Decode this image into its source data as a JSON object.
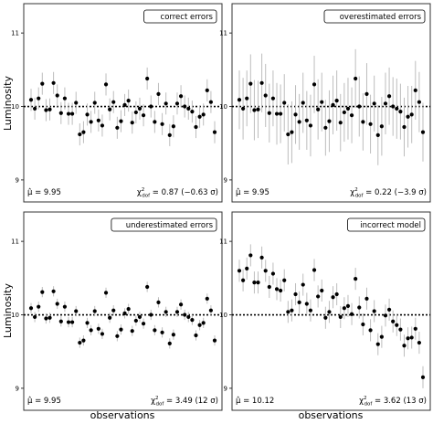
{
  "figure": {
    "ylabel": "Luminosity",
    "xlabel": "observations"
  },
  "chart_data": [
    {
      "type": "scatter",
      "title": "correct errors",
      "ylim": [
        8.7,
        11.4
      ],
      "yticks": [
        9,
        10,
        11
      ],
      "ref_line": 10,
      "mu_label": "μ̂ = 9.95",
      "chi_label": "χ²dof = 0.87 (−0.63 σ)",
      "chi_parts": [
        "χ",
        "2",
        "dof",
        " = 0.87 (−0.63 σ)"
      ],
      "values": [
        10.09,
        9.97,
        10.11,
        10.31,
        9.95,
        9.96,
        10.32,
        10.15,
        9.91,
        10.11,
        9.9,
        9.9,
        10.05,
        9.62,
        9.65,
        9.89,
        9.79,
        10.05,
        9.81,
        9.74,
        10.3,
        9.96,
        10.06,
        9.71,
        9.8,
        10.02,
        10.08,
        9.78,
        9.92,
        9.97,
        9.88,
        10.38,
        10.0,
        9.79,
        10.17,
        9.76,
        10.04,
        9.61,
        9.73,
        10.04,
        10.14,
        10.0,
        9.97,
        9.93,
        9.72,
        9.86,
        9.89,
        10.22,
        10.06,
        9.65
      ],
      "errors": [
        0.15,
        0.15,
        0.15,
        0.15,
        0.15,
        0.15,
        0.15,
        0.15,
        0.15,
        0.15,
        0.15,
        0.15,
        0.15,
        0.15,
        0.15,
        0.15,
        0.15,
        0.15,
        0.15,
        0.15,
        0.15,
        0.15,
        0.15,
        0.15,
        0.15,
        0.15,
        0.15,
        0.15,
        0.15,
        0.15,
        0.15,
        0.15,
        0.15,
        0.15,
        0.15,
        0.15,
        0.15,
        0.15,
        0.15,
        0.15,
        0.15,
        0.15,
        0.15,
        0.15,
        0.15,
        0.15,
        0.15,
        0.15,
        0.15,
        0.15
      ]
    },
    {
      "type": "scatter",
      "title": "overestimated errors",
      "ylim": [
        8.7,
        11.4
      ],
      "yticks": [
        9,
        10,
        11
      ],
      "ref_line": 10,
      "mu_label": "μ̂ = 9.95",
      "chi_label": "χ²dof = 0.22 (−3.9 σ)",
      "chi_parts": [
        "χ",
        "2",
        "dof",
        " = 0.22 (−3.9 σ)"
      ],
      "values": [
        10.09,
        9.97,
        10.11,
        10.31,
        9.95,
        9.96,
        10.32,
        10.15,
        9.91,
        10.11,
        9.9,
        9.9,
        10.05,
        9.62,
        9.65,
        9.89,
        9.79,
        10.05,
        9.81,
        9.74,
        10.3,
        9.96,
        10.06,
        9.71,
        9.8,
        10.02,
        10.08,
        9.78,
        9.92,
        9.97,
        9.88,
        10.38,
        10.0,
        9.79,
        10.17,
        9.76,
        10.04,
        9.61,
        9.73,
        10.04,
        10.14,
        10.0,
        9.97,
        9.93,
        9.72,
        9.86,
        9.89,
        10.22,
        10.06,
        9.65
      ],
      "errors": [
        0.4,
        0.42,
        0.38,
        0.4,
        0.41,
        0.39,
        0.4,
        0.43,
        0.4,
        0.38,
        0.42,
        0.4,
        0.39,
        0.41,
        0.42,
        0.4,
        0.38,
        0.41,
        0.4,
        0.42,
        0.39,
        0.41,
        0.4,
        0.38,
        0.42,
        0.4,
        0.41,
        0.39,
        0.4,
        0.42,
        0.38,
        0.4,
        0.41,
        0.39,
        0.42,
        0.4,
        0.38,
        0.41,
        0.4,
        0.42,
        0.39,
        0.4,
        0.41,
        0.38,
        0.4,
        0.42,
        0.39,
        0.4,
        0.41,
        0.4
      ]
    },
    {
      "type": "scatter",
      "title": "underestimated errors",
      "ylim": [
        8.7,
        11.4
      ],
      "yticks": [
        9,
        10,
        11
      ],
      "ref_line": 10,
      "mu_label": "μ̂ = 9.95",
      "chi_label": "χ²dof = 3.49 (12 σ)",
      "chi_parts": [
        "χ",
        "2",
        "dof",
        " = 3.49 (12 σ)"
      ],
      "values": [
        10.09,
        9.97,
        10.11,
        10.31,
        9.95,
        9.96,
        10.32,
        10.15,
        9.91,
        10.11,
        9.9,
        9.9,
        10.05,
        9.62,
        9.65,
        9.89,
        9.79,
        10.05,
        9.81,
        9.74,
        10.3,
        9.96,
        10.06,
        9.71,
        9.8,
        10.02,
        10.08,
        9.78,
        9.92,
        9.97,
        9.88,
        10.38,
        10.0,
        9.79,
        10.17,
        9.76,
        10.04,
        9.61,
        9.73,
        10.04,
        10.14,
        10.0,
        9.97,
        9.93,
        9.72,
        9.86,
        9.89,
        10.22,
        10.06,
        9.65
      ],
      "errors": [
        0.07,
        0.07,
        0.07,
        0.07,
        0.07,
        0.07,
        0.07,
        0.07,
        0.07,
        0.07,
        0.07,
        0.07,
        0.07,
        0.07,
        0.07,
        0.07,
        0.07,
        0.07,
        0.07,
        0.07,
        0.07,
        0.07,
        0.07,
        0.07,
        0.07,
        0.07,
        0.07,
        0.07,
        0.07,
        0.07,
        0.07,
        0.07,
        0.07,
        0.07,
        0.07,
        0.07,
        0.07,
        0.07,
        0.07,
        0.07,
        0.07,
        0.07,
        0.07,
        0.07,
        0.07,
        0.07,
        0.07,
        0.07,
        0.07,
        0.07
      ]
    },
    {
      "type": "scatter",
      "title": "incorrect model",
      "ylim": [
        8.7,
        11.4
      ],
      "yticks": [
        9,
        10,
        11
      ],
      "ref_line": 10,
      "mu_label": "μ̂ = 10.12",
      "chi_label": "χ²dof = 3.62 (13 σ)",
      "chi_parts": [
        "χ",
        "2",
        "dof",
        " = 3.62 (13 σ)"
      ],
      "values": [
        10.6,
        10.47,
        10.63,
        10.81,
        10.44,
        10.44,
        10.78,
        10.6,
        10.38,
        10.56,
        10.35,
        10.33,
        10.47,
        10.04,
        10.06,
        10.28,
        10.17,
        10.41,
        10.15,
        10.06,
        10.61,
        10.25,
        10.33,
        9.96,
        10.04,
        10.24,
        10.28,
        9.97,
        10.09,
        10.12,
        10.01,
        10.49,
        10.1,
        9.87,
        10.22,
        9.79,
        10.05,
        9.6,
        9.7,
        9.99,
        10.07,
        9.91,
        9.86,
        9.8,
        9.58,
        9.68,
        9.69,
        9.81,
        9.62,
        9.15
      ],
      "errors": [
        0.15,
        0.15,
        0.15,
        0.15,
        0.15,
        0.15,
        0.15,
        0.15,
        0.15,
        0.15,
        0.15,
        0.15,
        0.15,
        0.15,
        0.15,
        0.15,
        0.15,
        0.15,
        0.15,
        0.15,
        0.15,
        0.15,
        0.15,
        0.15,
        0.15,
        0.15,
        0.15,
        0.15,
        0.15,
        0.15,
        0.15,
        0.15,
        0.15,
        0.15,
        0.15,
        0.15,
        0.15,
        0.15,
        0.15,
        0.15,
        0.15,
        0.15,
        0.15,
        0.15,
        0.15,
        0.15,
        0.15,
        0.15,
        0.15,
        0.15
      ]
    }
  ],
  "colors": {
    "errorbar": "#bdbdbd",
    "point": "#000000",
    "frame": "#333333",
    "refline": "#000000"
  }
}
